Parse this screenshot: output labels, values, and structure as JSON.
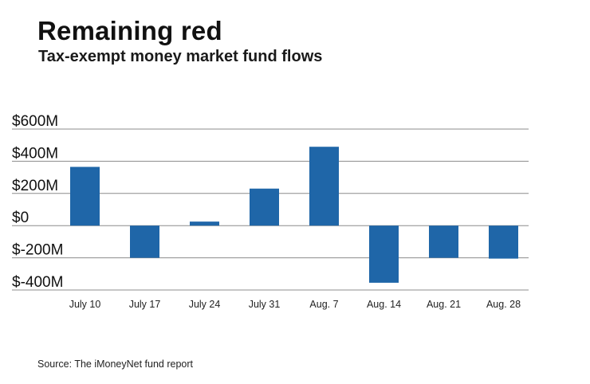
{
  "colors": {
    "bar": "#1f66a8",
    "grid": "#8c8c8c"
  },
  "chart_data": {
    "type": "bar",
    "title": "Remaining red",
    "subtitle": "Tax-exempt money market fund flows",
    "source": "Source: The iMoneyNet fund report",
    "xlabel": "",
    "ylabel": "",
    "ylim": [
      -400,
      600
    ],
    "yticks": [
      600,
      400,
      200,
      0,
      -200,
      -400
    ],
    "ytick_labels": [
      "$600M",
      "$400M",
      "$200M",
      "$0",
      "$-200M",
      "$-400M"
    ],
    "grid": true,
    "categories": [
      "July 10",
      "July 17",
      "July 24",
      "July 31",
      "Aug. 7",
      "Aug. 14",
      "Aug. 21",
      "Aug. 28"
    ],
    "values": [
      365,
      -200,
      25,
      230,
      490,
      -355,
      -200,
      -205
    ]
  }
}
